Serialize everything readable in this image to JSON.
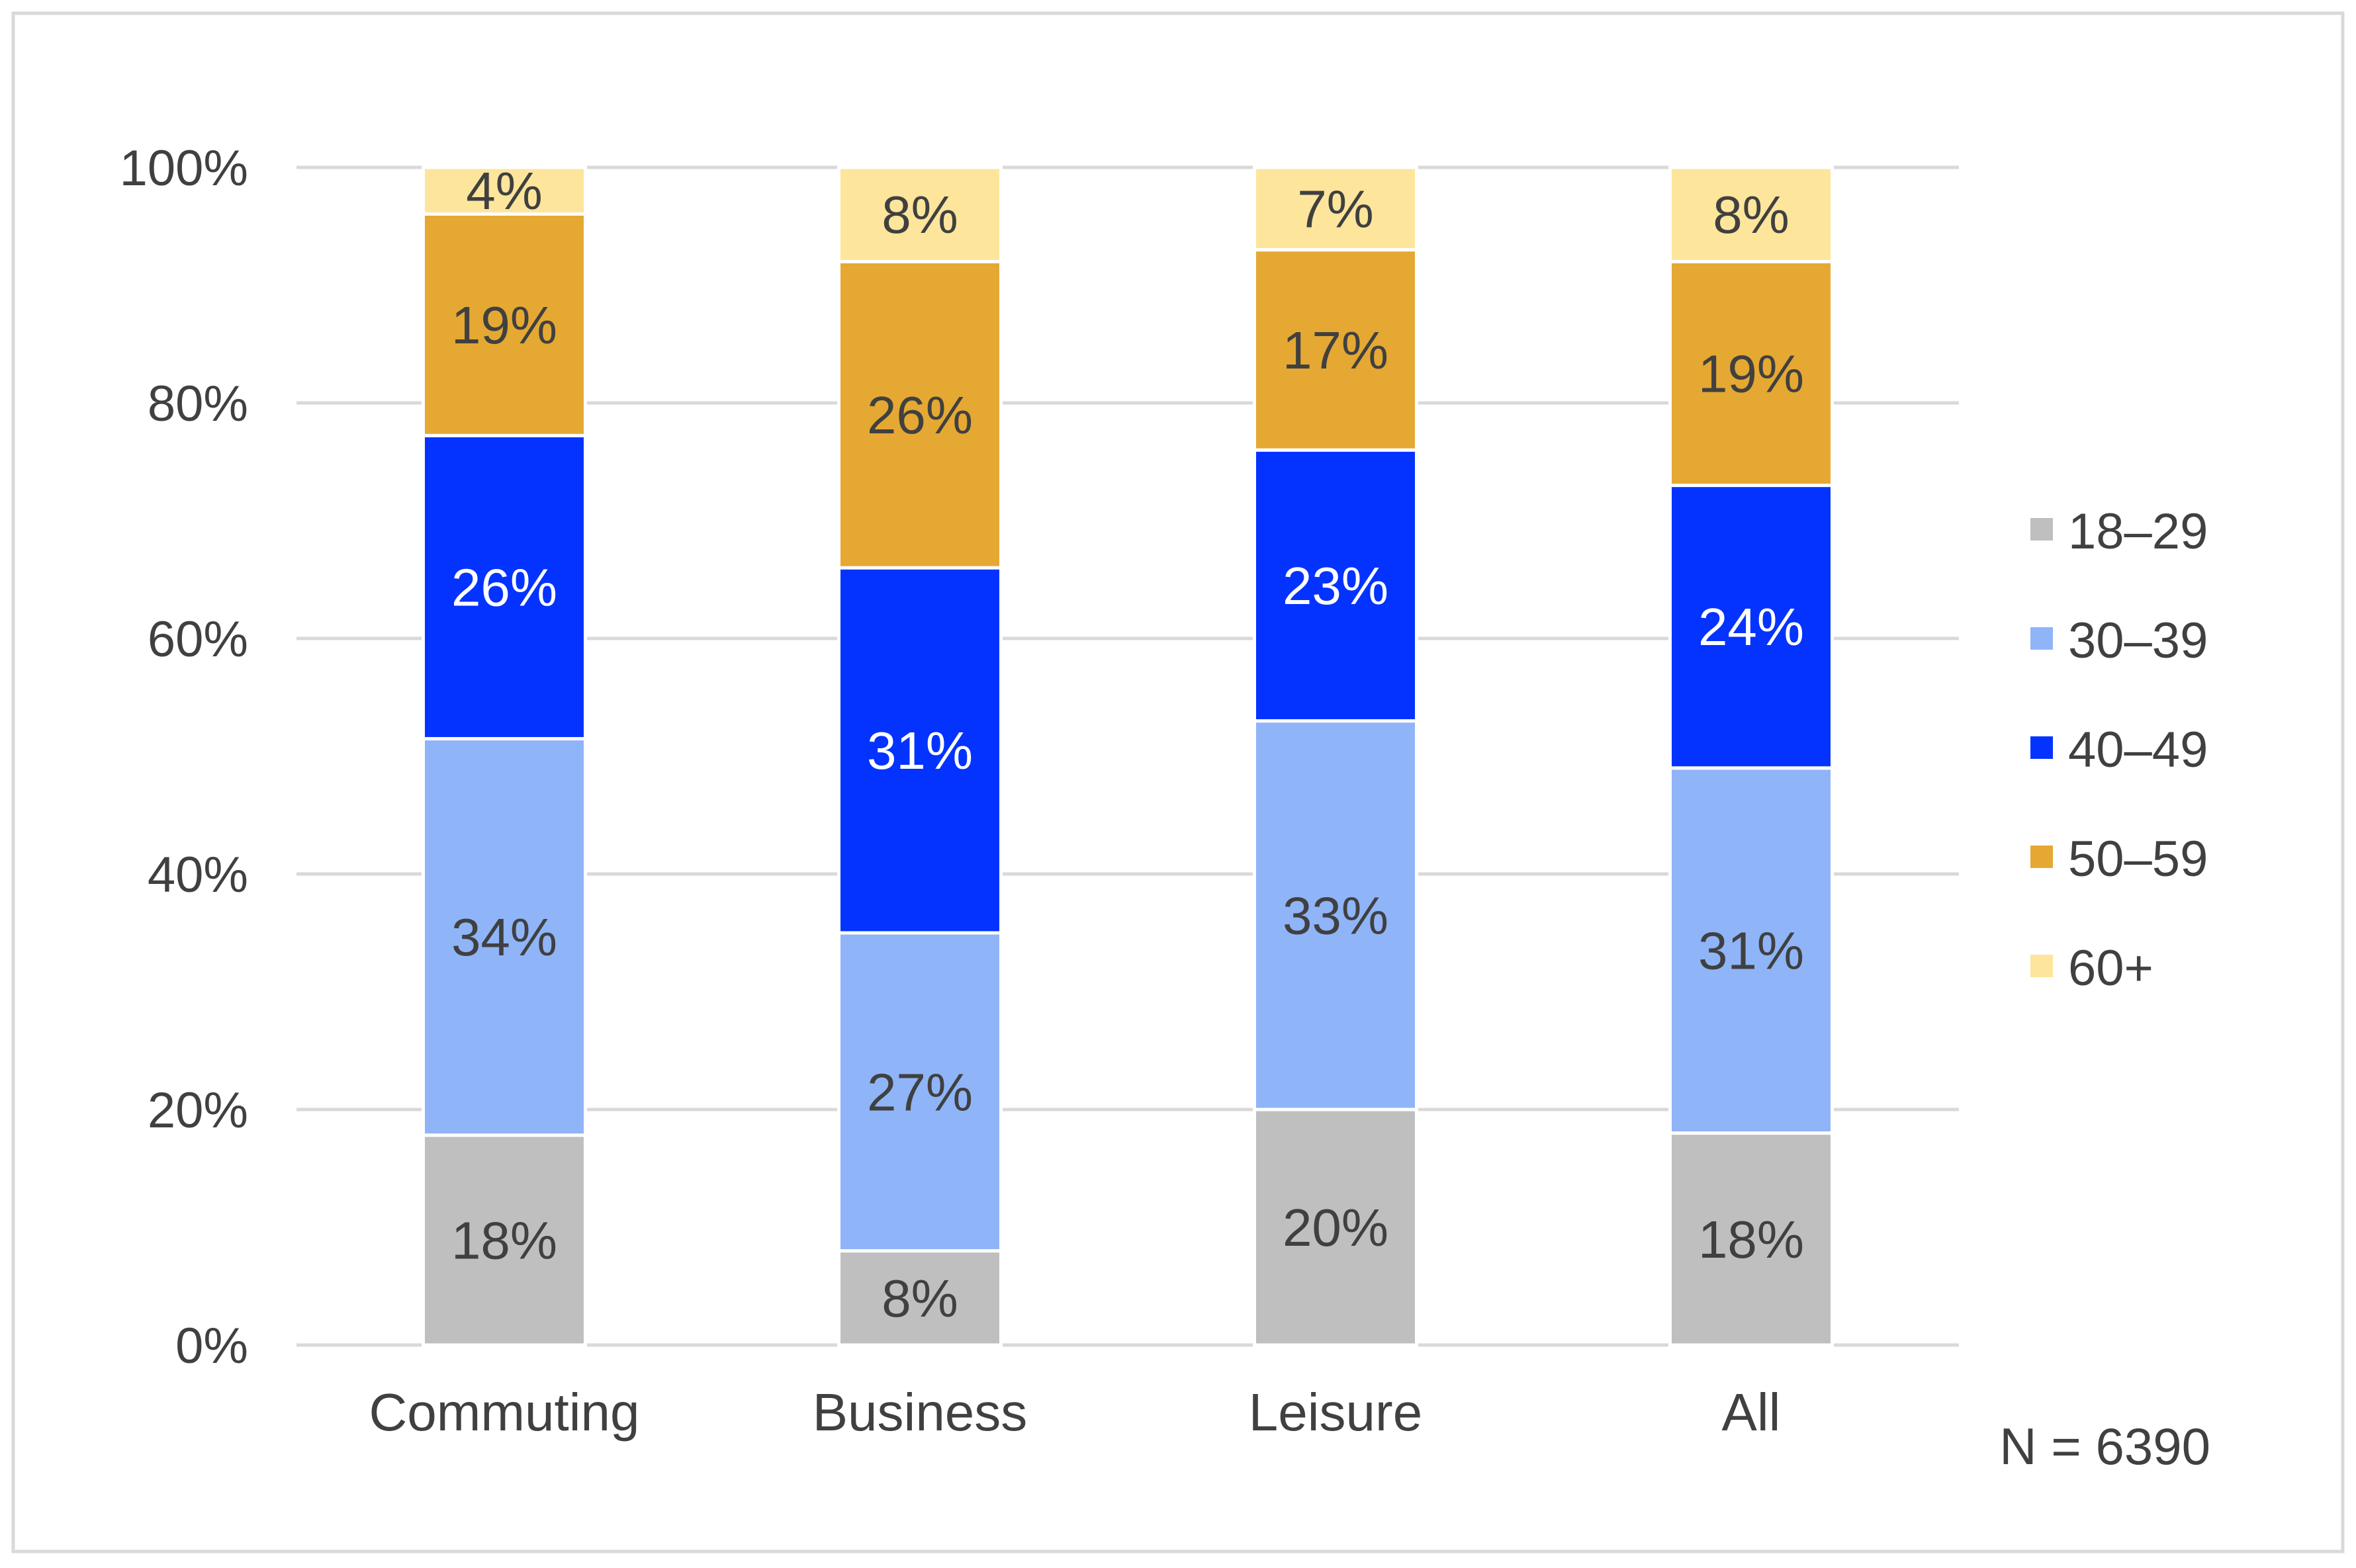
{
  "chart_data": {
    "type": "bar",
    "stacked": true,
    "percent": true,
    "categories": [
      "Commuting",
      "Business",
      "Leisure",
      "All"
    ],
    "series": [
      {
        "name": "18–29",
        "color": "#bfbfbf",
        "label_color": "#404040",
        "values": [
          18,
          8,
          20,
          18
        ],
        "labels": [
          "18%",
          "8%",
          "20%",
          "18%"
        ]
      },
      {
        "name": "30–39",
        "color": "#8fb4f8",
        "label_color": "#404040",
        "values": [
          34,
          27,
          33,
          31
        ],
        "labels": [
          "34%",
          "27%",
          "33%",
          "31%"
        ]
      },
      {
        "name": "40–49",
        "color": "#0433ff",
        "label_color": "#ffffff",
        "values": [
          26,
          31,
          23,
          24
        ],
        "labels": [
          "26%",
          "31%",
          "23%",
          "24%"
        ]
      },
      {
        "name": "50–59",
        "color": "#e5a832",
        "label_color": "#404040",
        "values": [
          19,
          26,
          17,
          19
        ],
        "labels": [
          "19%",
          "26%",
          "17%",
          "19%"
        ]
      },
      {
        "name": "60+",
        "color": "#fde59c",
        "label_color": "#404040",
        "values": [
          4,
          8,
          7,
          8
        ],
        "labels": [
          "4%",
          "8%",
          "7%",
          "8%"
        ]
      }
    ],
    "ylim": [
      0,
      100
    ],
    "yticks": [
      0,
      20,
      40,
      60,
      80,
      100
    ],
    "ytick_labels": [
      "0%",
      "20%",
      "40%",
      "60%",
      "80%",
      "100%"
    ],
    "grid": true,
    "legend_position": "right",
    "annotation": "N = 6390",
    "title": "",
    "xlabel": "",
    "ylabel": ""
  },
  "colors": {
    "grid": "#d9d9d9",
    "text": "#404040",
    "border": "#d9d9d9",
    "separator": "#ffffff"
  }
}
